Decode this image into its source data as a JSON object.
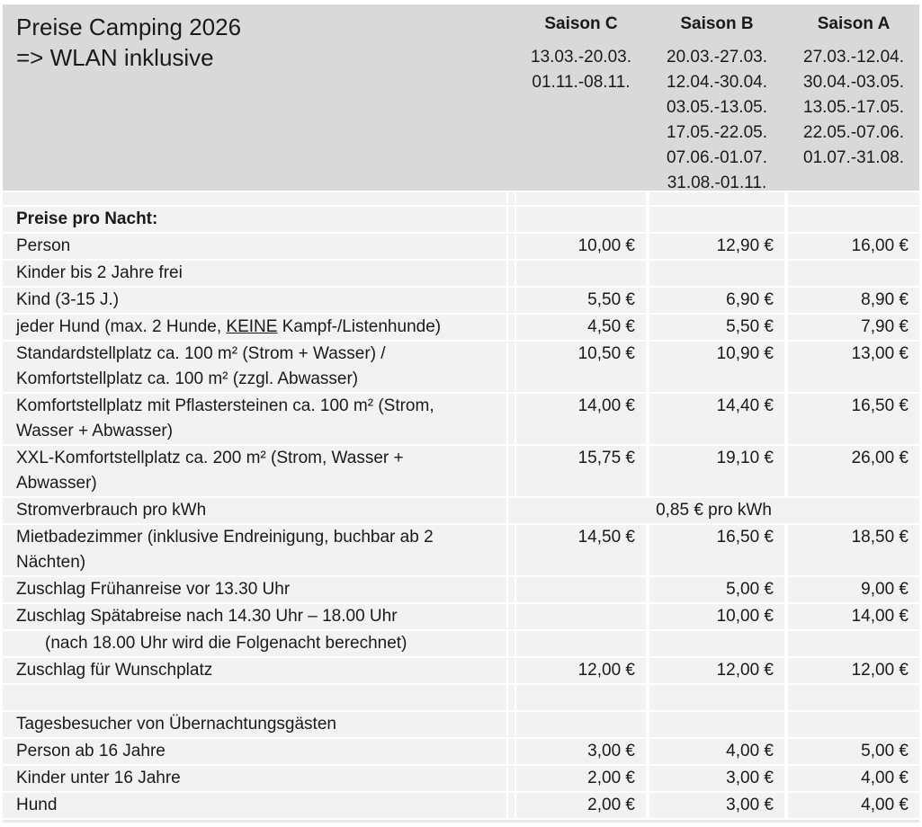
{
  "header": {
    "title_line1": "Preise Camping 2026",
    "title_line2": "=> WLAN inklusive",
    "seasons": [
      {
        "name": "Saison C",
        "dates": [
          "13.03.-20.03.",
          "01.11.-08.11."
        ]
      },
      {
        "name": "Saison B",
        "dates": [
          "20.03.-27.03.",
          "12.04.-30.04.",
          "03.05.-13.05.",
          "17.05.-22.05.",
          "07.06.-01.07.",
          "31.08.-01.11."
        ]
      },
      {
        "name": "Saison A",
        "dates": [
          "27.03.-12.04.",
          "30.04.-03.05.",
          "13.05.-17.05.",
          "22.05.-07.06.",
          "01.07.-31.08."
        ]
      }
    ]
  },
  "rows": [
    {
      "label": "Preise pro Nacht:",
      "c": "",
      "b": "",
      "a": ""
    },
    {
      "label": "Person",
      "c": "10,00 €",
      "b": "12,90 €",
      "a": "16,00 €"
    },
    {
      "label": "Kinder bis 2 Jahre frei",
      "c": "",
      "b": "",
      "a": ""
    },
    {
      "label": "Kind (3-15 J.)",
      "c": "5,50 €",
      "b": "6,90 €",
      "a": "8,90 €"
    },
    {
      "label_pre": "jeder Hund (max. 2 Hunde, ",
      "label_underline": "KEINE",
      "label_post": " Kampf-/Listenhunde)",
      "c": "4,50 €",
      "b": "5,50 €",
      "a": "7,90 €"
    },
    {
      "line1": "Standardstellplatz ca. 100 m² (Strom + Wasser) /",
      "line2": "Komfortstellplatz ca. 100 m² (zzgl. Abwasser)",
      "c": "10,50 €",
      "b": "10,90 €",
      "a": "13,00 €"
    },
    {
      "line1": "Komfortstellplatz mit Pflastersteinen ca. 100 m² (Strom,",
      "line2": "Wasser + Abwasser)",
      "c": "14,00 €",
      "b": "14,40 €",
      "a": "16,50 €"
    },
    {
      "line1": "XXL-Komfortstellplatz ca. 200 m² (Strom, Wasser +",
      "line2": "Abwasser)",
      "c": "15,75 €",
      "b": "19,10 €",
      "a": "26,00 €"
    },
    {
      "label": "Stromverbrauch pro kWh",
      "merged": "0,85 € pro kWh"
    },
    {
      "line1": "Mietbadezimmer (inklusive Endreinigung, buchbar ab 2",
      "line2": "Nächten)",
      "c": "14,50 €",
      "b": "16,50 €",
      "a": "18,50 €"
    },
    {
      "label": "Zuschlag Frühanreise vor 13.30 Uhr",
      "c": "",
      "b": "5,00 €",
      "a": "9,00 €"
    },
    {
      "label": "Zuschlag Spätabreise nach 14.30 Uhr – 18.00 Uhr",
      "c": "",
      "b": "10,00 €",
      "a": "14,00 €"
    },
    {
      "label": "(nach 18.00 Uhr wird die Folgenacht berechnet)",
      "c": "",
      "b": "",
      "a": ""
    },
    {
      "label": "Zuschlag für Wunschplatz",
      "c": "12,00 €",
      "b": "12,00 €",
      "a": "12,00 €"
    },
    {
      "label": "",
      "c": "",
      "b": "",
      "a": ""
    },
    {
      "label": "Tagesbesucher von Übernachtungsgästen",
      "c": "",
      "b": "",
      "a": ""
    },
    {
      "label": "Person ab 16 Jahre",
      "c": "3,00 €",
      "b": "4,00 €",
      "a": "5,00 €"
    },
    {
      "label": "Kinder unter 16 Jahre",
      "c": "2,00 €",
      "b": "3,00 €",
      "a": "4,00 €"
    },
    {
      "label": "Hund",
      "c": "2,00 €",
      "b": "3,00 €",
      "a": "4,00 €"
    }
  ],
  "colors": {
    "header_bg": "#d9d9d9",
    "row_bg": "#f2f2f2",
    "separator": "#ffffff",
    "text": "#1a1a1a"
  }
}
